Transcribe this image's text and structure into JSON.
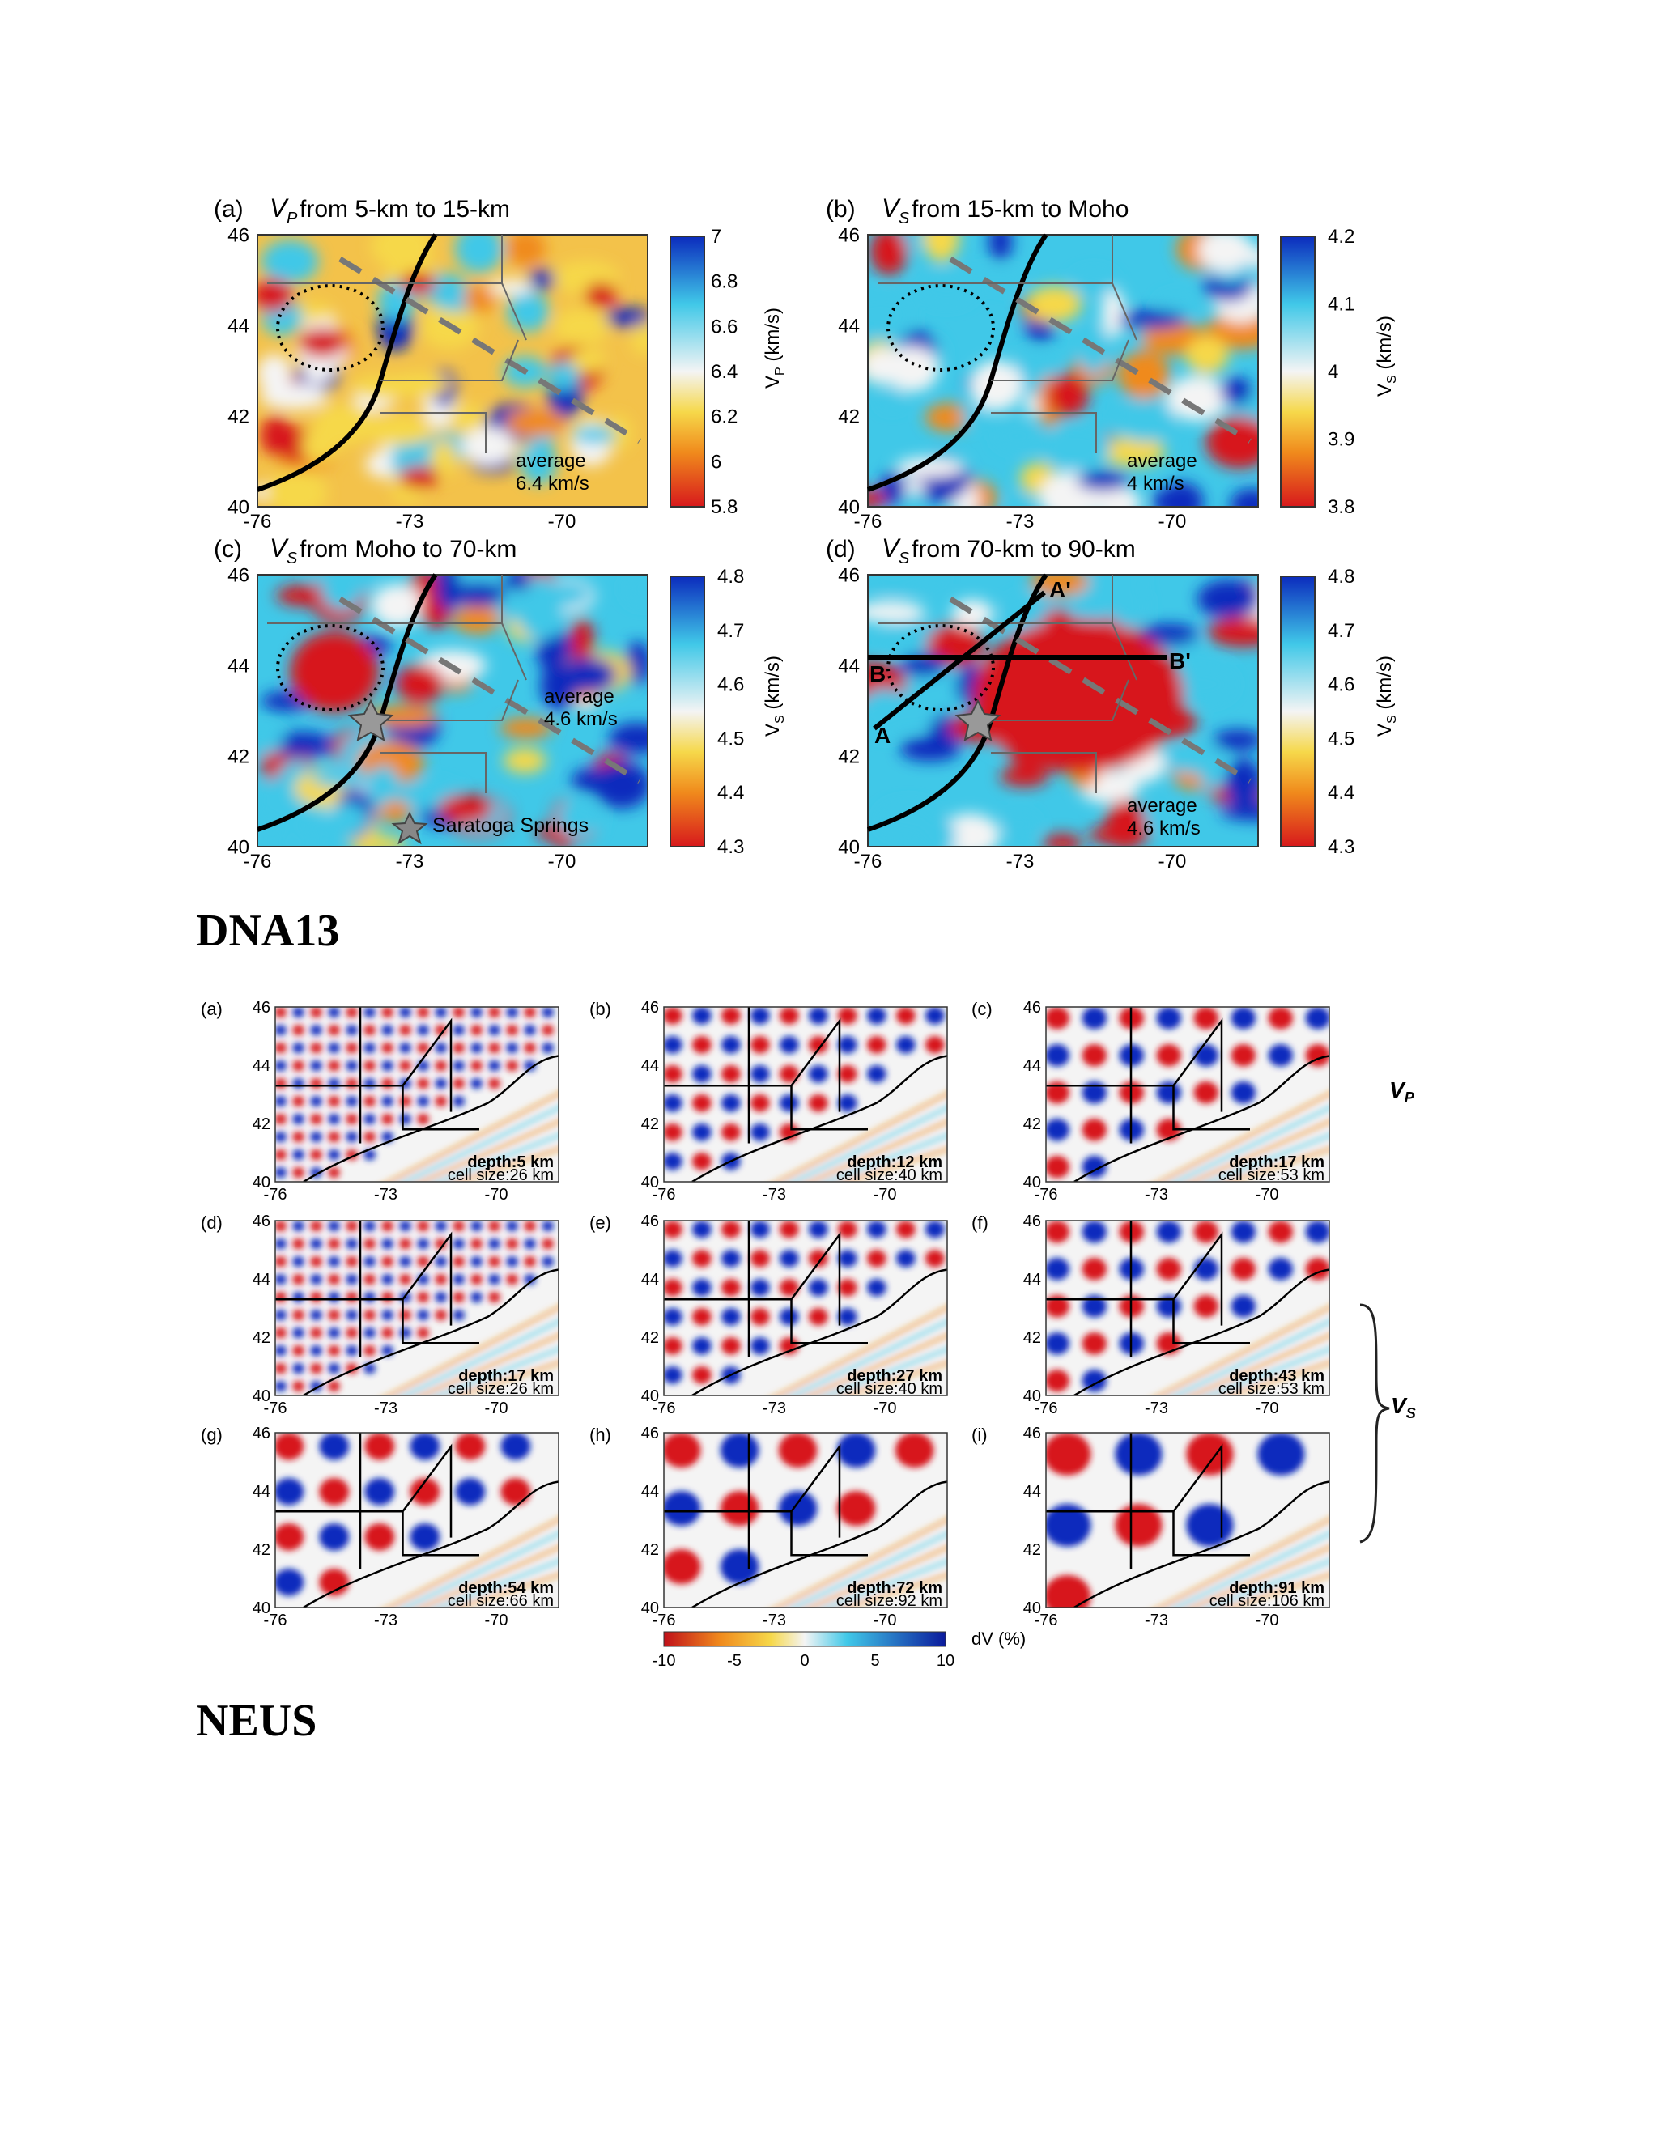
{
  "top_figure": {
    "panels": [
      {
        "letter": "(a)",
        "var": "V",
        "sub": "P",
        "title_rest": " from 5-km to 15-km",
        "avg_line1": "average",
        "avg_line2": "6.4 km/s",
        "cb_ticks": [
          "7",
          "6.8",
          "6.6",
          "6.4",
          "6.2",
          "6",
          "5.8"
        ],
        "cb_label": "V",
        "cb_label_sub": "P",
        "cb_label_unit": " (km/s)"
      },
      {
        "letter": "(b)",
        "var": "V",
        "sub": "S",
        "title_rest": " from 15-km to Moho",
        "avg_line1": "average",
        "avg_line2": "4 km/s",
        "cb_ticks": [
          "4.2",
          "4.1",
          "4",
          "3.9",
          "3.8"
        ],
        "cb_label": "V",
        "cb_label_sub": "S",
        "cb_label_unit": " (km/s)"
      },
      {
        "letter": "(c)",
        "var": "V",
        "sub": "S",
        "title_rest": " from Moho to 70-km",
        "avg_line1": "average",
        "avg_line2": "4.6 km/s",
        "cb_ticks": [
          "4.8",
          "4.7",
          "4.6",
          "4.5",
          "4.4",
          "4.3"
        ],
        "cb_label": "V",
        "cb_label_sub": "S",
        "cb_label_unit": " (km/s)",
        "legend": "Saratoga Springs"
      },
      {
        "letter": "(d)",
        "var": "V",
        "sub": "S",
        "title_rest": " from 70-km to 90-km",
        "avg_line1": "average",
        "avg_line2": "4.6 km/s",
        "cb_ticks": [
          "4.8",
          "4.7",
          "4.6",
          "4.5",
          "4.4",
          "4.3"
        ],
        "cb_label": "V",
        "cb_label_sub": "S",
        "cb_label_unit": " (km/s)",
        "section_labels": [
          "A'",
          "A",
          "B",
          "B'"
        ]
      }
    ],
    "y_ticks": [
      "46",
      "44",
      "42",
      "40"
    ],
    "x_ticks": [
      "-76",
      "-73",
      "-70"
    ]
  },
  "heading_1": "DNA13",
  "bottom_figure": {
    "panels": [
      {
        "letter": "(a)",
        "depth": "depth:5 km",
        "cell": "cell size:26 km"
      },
      {
        "letter": "(b)",
        "depth": "depth:12 km",
        "cell": "cell size:40 km"
      },
      {
        "letter": "(c)",
        "depth": "depth:17 km",
        "cell": "cell size:53 km"
      },
      {
        "letter": "(d)",
        "depth": "depth:17 km",
        "cell": "cell size:26 km"
      },
      {
        "letter": "(e)",
        "depth": "depth:27 km",
        "cell": "cell size:40 km"
      },
      {
        "letter": "(f)",
        "depth": "depth:43 km",
        "cell": "cell size:53 km"
      },
      {
        "letter": "(g)",
        "depth": "depth:54 km",
        "cell": "cell size:66 km"
      },
      {
        "letter": "(h)",
        "depth": "depth:72 km",
        "cell": "cell size:92 km"
      },
      {
        "letter": "(i)",
        "depth": "depth:91 km",
        "cell": "cell size:106 km"
      }
    ],
    "y_ticks": [
      "46",
      "44",
      "42",
      "40"
    ],
    "x_ticks": [
      "-76",
      "-73",
      "-70"
    ],
    "vp_label": "V",
    "vp_sub": "P",
    "vs_label": "V",
    "vs_sub": "S",
    "colorbar_ticks": [
      "-10",
      "-5",
      "0",
      "5",
      "10"
    ],
    "colorbar_label": "dV (%)"
  },
  "heading_2": "NEUS",
  "colors": {
    "red": "#d7191c",
    "blue": "#0b2bbd",
    "cyan": "#40c8e8",
    "yellow": "#f6d84a",
    "orange": "#f08a1c",
    "white": "#f4f4f4"
  }
}
